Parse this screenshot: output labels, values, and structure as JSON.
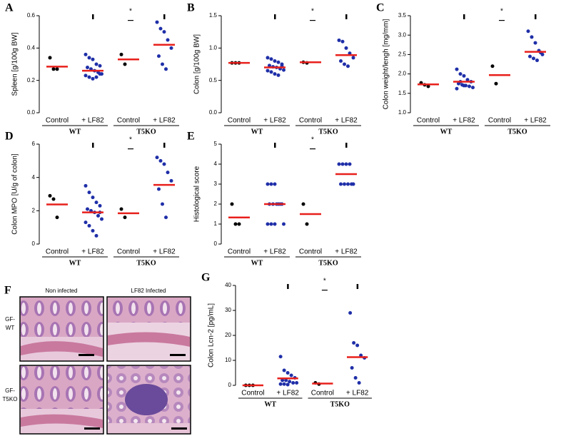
{
  "chart_data": [
    {
      "type": "scatter",
      "label": "A",
      "ylabel": "Spleen [g/100g BW]",
      "categories": [
        "Control",
        "+ LF82",
        "Control",
        "+ LF82"
      ],
      "groups": [
        "WT",
        "T5KO"
      ],
      "points": [
        [
          0.34,
          0.27,
          0.27
        ],
        [
          0.36,
          0.34,
          0.33,
          0.3,
          0.29,
          0.28,
          0.27,
          0.26,
          0.25,
          0.24,
          0.23,
          0.22,
          0.21,
          0.22,
          0.24
        ],
        [
          0.36,
          0.3
        ],
        [
          0.56,
          0.52,
          0.5,
          0.45,
          0.4,
          0.35,
          0.3,
          0.27
        ]
      ],
      "means": [
        0.285,
        0.26,
        0.33,
        0.42
      ],
      "point_colors": [
        "#000000",
        "#1f2fa8",
        "#000000",
        "#1f2fa8"
      ],
      "mean_color": "#e8201c",
      "ylim": [
        0,
        0.6
      ],
      "yticks": [
        {
          "value": 0,
          "label": "0.0"
        },
        0.2,
        0.4,
        0.6
      ],
      "significance": [
        null,
        null,
        "*",
        null
      ]
    },
    {
      "type": "scatter",
      "label": "B",
      "ylabel": "Colon [g/100g BW]",
      "categories": [
        "Control",
        "+ LF82",
        "Control",
        "+ LF82"
      ],
      "groups": [
        "WT",
        "T5KO"
      ],
      "points": [
        [
          0.77,
          0.77,
          0.77
        ],
        [
          0.85,
          0.83,
          0.8,
          0.78,
          0.75,
          0.73,
          0.71,
          0.7,
          0.68,
          0.66,
          0.65,
          0.63,
          0.6,
          0.58,
          0.72
        ],
        [
          0.78,
          0.77
        ],
        [
          1.12,
          1.1,
          1.0,
          0.92,
          0.85,
          0.8,
          0.75,
          0.72
        ]
      ],
      "means": [
        0.77,
        0.7,
        0.78,
        0.89
      ],
      "point_colors": [
        "#000000",
        "#1f2fa8",
        "#000000",
        "#1f2fa8"
      ],
      "mean_color": "#e8201c",
      "ylim": [
        0,
        1.5
      ],
      "yticks": [
        {
          "value": 0,
          "label": "0.0"
        },
        0.5,
        {
          "value": 1,
          "label": "1.0"
        },
        1.5
      ],
      "significance": [
        null,
        null,
        "*",
        null
      ]
    },
    {
      "type": "scatter",
      "label": "C",
      "ylabel": "Colon weight/lengh [mg/mm]",
      "categories": [
        "Control",
        "+ LF82",
        "Control",
        "+ LF82"
      ],
      "groups": [
        "WT",
        "T5KO"
      ],
      "points": [
        [
          1.77,
          1.72,
          1.68
        ],
        [
          2.12,
          2.0,
          1.95,
          1.85,
          1.8,
          1.75,
          1.72,
          1.7,
          1.68,
          1.65,
          1.62,
          1.8,
          1.7
        ],
        [
          2.2,
          1.75
        ],
        [
          3.1,
          2.95,
          2.8,
          2.6,
          2.5,
          2.45,
          2.4,
          2.35,
          2.55
        ]
      ],
      "means": [
        1.73,
        1.8,
        1.97,
        2.57
      ],
      "point_colors": [
        "#000000",
        "#1f2fa8",
        "#000000",
        "#1f2fa8"
      ],
      "mean_color": "#e8201c",
      "ylim": [
        1,
        3.5
      ],
      "yticks": [
        {
          "value": 1,
          "label": "1.0"
        },
        1.5,
        {
          "value": 2,
          "label": "2.0"
        },
        2.5,
        {
          "value": 3,
          "label": "3.0"
        },
        3.5
      ],
      "significance": [
        null,
        null,
        "*",
        null
      ]
    },
    {
      "type": "scatter",
      "label": "D",
      "ylabel": "Colon MPO [U/g of colon]",
      "categories": [
        "Control",
        "+ LF82",
        "Control",
        "+ LF82"
      ],
      "groups": [
        "WT",
        "T5KO"
      ],
      "points": [
        [
          2.9,
          2.7,
          1.6
        ],
        [
          3.5,
          3.1,
          2.8,
          2.5,
          2.3,
          2.1,
          2.0,
          1.9,
          1.7,
          1.5,
          1.3,
          1.1,
          0.8,
          0.5,
          1.9
        ],
        [
          2.1,
          1.6
        ],
        [
          5.2,
          5.0,
          4.8,
          4.3,
          3.8,
          3.3,
          2.4,
          1.6
        ]
      ],
      "means": [
        2.38,
        1.9,
        1.85,
        3.55
      ],
      "point_colors": [
        "#000000",
        "#1f2fa8",
        "#000000",
        "#1f2fa8"
      ],
      "mean_color": "#e8201c",
      "ylim": [
        0,
        6
      ],
      "yticks": [
        0,
        2,
        4,
        6
      ],
      "significance": [
        null,
        null,
        "*",
        null
      ]
    },
    {
      "type": "scatter",
      "label": "E",
      "ylabel": "Histological score",
      "categories": [
        "Control",
        "+ LF82",
        "Control",
        "+ LF82"
      ],
      "groups": [
        "WT",
        "T5KO"
      ],
      "points": [
        [
          2,
          1,
          1
        ],
        [
          3,
          3,
          3,
          2,
          2,
          2,
          2,
          2,
          2,
          1,
          1,
          1,
          1
        ],
        [
          2,
          1
        ],
        [
          4,
          4,
          4,
          4,
          3,
          3,
          3,
          3,
          3
        ]
      ],
      "means": [
        1.33,
        2,
        1.5,
        3.5
      ],
      "point_colors": [
        "#000000",
        "#1f2fa8",
        "#000000",
        "#1f2fa8"
      ],
      "mean_color": "#e8201c",
      "ylim": [
        0,
        5
      ],
      "yticks": [
        0,
        1,
        2,
        3,
        4,
        5
      ],
      "significance": [
        null,
        null,
        "*",
        null
      ]
    },
    {
      "type": "scatter",
      "label": "G",
      "ylabel": "Colon Lcn-2 [pg/mL]",
      "categories": [
        "Control",
        "+ LF82",
        "Control",
        "+ LF82"
      ],
      "groups": [
        "WT",
        "T5KO"
      ],
      "points": [
        [
          0,
          0,
          0
        ],
        [
          11.5,
          6,
          5,
          4,
          3,
          2,
          2,
          1.5,
          1,
          1,
          0.5,
          0.5,
          0.3
        ],
        [
          1,
          0.5
        ],
        [
          29,
          17,
          16,
          12,
          11,
          7,
          3,
          1
        ]
      ],
      "means": [
        0,
        2.8,
        0.7,
        11.3
      ],
      "point_colors": [
        "#000000",
        "#1f2fa8",
        "#000000",
        "#1f2fa8"
      ],
      "mean_color": "#e8201c",
      "ylim": [
        0,
        40
      ],
      "yticks": [
        0,
        10,
        20,
        30,
        40
      ],
      "significance": [
        null,
        null,
        "*",
        null
      ]
    }
  ],
  "histology": {
    "label": "F",
    "columns": [
      "Non infected",
      "LF82 Infected"
    ],
    "rows": [
      [
        "GF-",
        "WT"
      ],
      [
        "GF-",
        "T5KO"
      ]
    ]
  }
}
